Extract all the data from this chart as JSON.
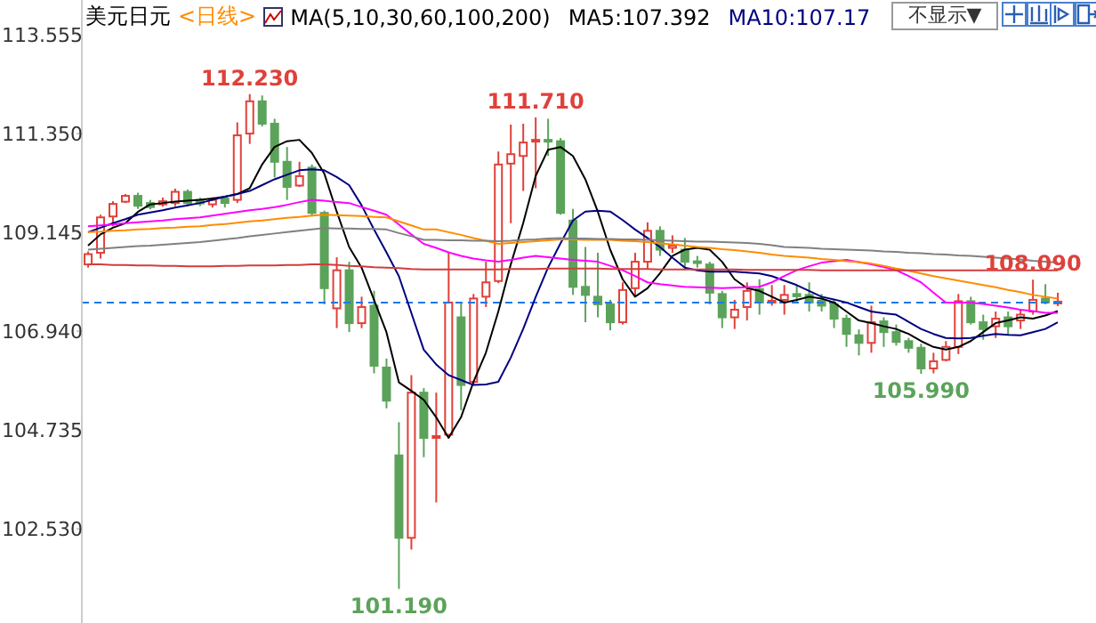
{
  "chart_data": {
    "type": "candlestick",
    "title": "美元日元",
    "subtitle": "<日线>",
    "annotations": [
      "MA(5,10,30,60,100,200)",
      "MA5:107.392",
      "MA10:107.17",
      "不显示▼",
      {
        "text": "112.230",
        "y": 112.23
      },
      {
        "text": "111.710",
        "y": 111.71
      },
      {
        "text": "108.090",
        "y": 108.09
      },
      {
        "text": "101.190",
        "y": 101.19
      },
      {
        "text": "105.990",
        "y": 105.99
      }
    ],
    "categories": [
      null,
      null,
      null,
      null,
      null,
      null,
      null,
      null,
      null,
      null,
      null,
      null,
      null,
      null,
      null,
      null,
      null,
      null,
      null,
      null,
      null,
      null,
      null,
      null,
      null,
      null,
      null,
      null,
      null,
      null,
      null,
      null,
      null,
      null,
      null,
      null,
      null,
      null,
      null,
      null,
      null,
      null,
      null,
      null,
      null,
      null,
      null,
      null,
      null,
      null,
      null,
      null,
      null,
      null,
      null,
      null,
      null,
      null,
      null,
      null,
      null,
      null,
      null,
      null,
      null,
      null,
      null,
      null,
      null,
      null,
      null,
      null,
      null,
      null,
      null,
      null,
      null,
      null,
      null
    ],
    "ohlc": [
      [
        108.43,
        108.72,
        108.36,
        108.66
      ],
      [
        108.69,
        109.54,
        108.56,
        109.48
      ],
      [
        109.5,
        109.84,
        109.28,
        109.78
      ],
      [
        109.83,
        110.0,
        109.8,
        109.96
      ],
      [
        109.96,
        110.03,
        109.67,
        109.74
      ],
      [
        109.8,
        109.87,
        109.66,
        109.71
      ],
      [
        109.77,
        109.92,
        109.72,
        109.84
      ],
      [
        109.8,
        110.12,
        109.73,
        110.05
      ],
      [
        110.05,
        110.1,
        109.73,
        109.8
      ],
      [
        109.87,
        109.92,
        109.73,
        109.79
      ],
      [
        109.77,
        109.93,
        109.7,
        109.87
      ],
      [
        109.9,
        109.95,
        109.7,
        109.8
      ],
      [
        109.87,
        111.6,
        109.8,
        111.31
      ],
      [
        111.35,
        112.23,
        111.12,
        112.07
      ],
      [
        112.07,
        112.2,
        111.51,
        111.57
      ],
      [
        111.57,
        111.68,
        110.37,
        110.72
      ],
      [
        110.72,
        111.05,
        109.87,
        110.16
      ],
      [
        110.19,
        110.72,
        110.16,
        110.4
      ],
      [
        110.59,
        110.66,
        109.5,
        109.58
      ],
      [
        109.58,
        109.63,
        107.54,
        107.9
      ],
      [
        107.45,
        108.59,
        107.01,
        108.3
      ],
      [
        108.3,
        108.49,
        106.92,
        107.12
      ],
      [
        107.12,
        107.71,
        107.01,
        107.48
      ],
      [
        107.51,
        107.84,
        106.0,
        106.17
      ],
      [
        106.13,
        106.33,
        105.22,
        105.39
      ],
      [
        104.17,
        104.91,
        101.19,
        102.33
      ],
      [
        102.33,
        105.96,
        102.07,
        105.57
      ],
      [
        105.57,
        105.67,
        104.13,
        104.56
      ],
      [
        104.56,
        105.57,
        103.12,
        104.6
      ],
      [
        104.63,
        108.69,
        104.56,
        107.58
      ],
      [
        107.25,
        107.58,
        105.18,
        105.74
      ],
      [
        105.81,
        107.77,
        105.74,
        107.67
      ],
      [
        107.71,
        108.49,
        107.48,
        108.03
      ],
      [
        108.06,
        110.95,
        108.01,
        110.66
      ],
      [
        110.68,
        111.55,
        109.35,
        110.89
      ],
      [
        110.85,
        111.57,
        110.07,
        111.15
      ],
      [
        111.17,
        111.71,
        110.13,
        111.21
      ],
      [
        111.21,
        111.68,
        110.85,
        111.17
      ],
      [
        111.18,
        111.25,
        109.54,
        109.58
      ],
      [
        109.41,
        109.67,
        107.75,
        107.93
      ],
      [
        107.93,
        108.82,
        107.14,
        107.75
      ],
      [
        107.71,
        108.69,
        107.25,
        107.54
      ],
      [
        107.54,
        107.64,
        106.96,
        107.14
      ],
      [
        107.14,
        108.03,
        107.09,
        107.86
      ],
      [
        107.9,
        108.69,
        107.71,
        108.49
      ],
      [
        108.49,
        109.37,
        108.32,
        109.18
      ],
      [
        109.18,
        109.28,
        108.62,
        108.76
      ],
      [
        108.8,
        109.08,
        108.69,
        108.85
      ],
      [
        108.76,
        109.02,
        108.3,
        108.49
      ],
      [
        108.5,
        108.62,
        108.36,
        108.47
      ],
      [
        108.43,
        108.49,
        107.54,
        107.8
      ],
      [
        107.77,
        107.84,
        107.01,
        107.25
      ],
      [
        107.25,
        107.64,
        106.99,
        107.42
      ],
      [
        107.48,
        108.03,
        107.18,
        107.84
      ],
      [
        107.88,
        108.1,
        107.31,
        107.58
      ],
      [
        107.58,
        107.97,
        107.51,
        107.62
      ],
      [
        107.64,
        107.97,
        107.31,
        107.75
      ],
      [
        107.77,
        107.97,
        107.58,
        107.72
      ],
      [
        107.75,
        108.03,
        107.38,
        107.58
      ],
      [
        107.62,
        107.77,
        107.38,
        107.51
      ],
      [
        107.54,
        107.64,
        107.01,
        107.22
      ],
      [
        107.22,
        107.31,
        106.59,
        106.88
      ],
      [
        106.85,
        106.98,
        106.4,
        106.68
      ],
      [
        106.68,
        107.51,
        106.46,
        107.14
      ],
      [
        107.16,
        107.25,
        106.59,
        106.92
      ],
      [
        106.92,
        107.09,
        106.62,
        106.7
      ],
      [
        106.72,
        106.79,
        106.46,
        106.57
      ],
      [
        106.57,
        106.66,
        105.99,
        106.11
      ],
      [
        106.11,
        106.46,
        106.0,
        106.27
      ],
      [
        106.3,
        106.72,
        106.27,
        106.59
      ],
      [
        106.59,
        107.77,
        106.43,
        107.61
      ],
      [
        107.61,
        107.71,
        107.09,
        107.14
      ],
      [
        107.14,
        107.31,
        106.75,
        106.99
      ],
      [
        107.05,
        107.38,
        106.79,
        107.22
      ],
      [
        107.25,
        107.38,
        106.85,
        107.05
      ],
      [
        107.18,
        107.44,
        106.99,
        107.31
      ],
      [
        107.38,
        108.09,
        107.31,
        107.64
      ],
      [
        107.67,
        107.99,
        107.54,
        107.58
      ],
      [
        107.58,
        107.8,
        107.5,
        107.6
      ]
    ],
    "series": [
      {
        "type": "line",
        "color": "#000000",
        "values": [
          108.85,
          109.1,
          109.25,
          109.35,
          109.6,
          109.77,
          109.8,
          109.83,
          109.85,
          109.87,
          109.9,
          109.94,
          110.0,
          110.13,
          110.66,
          111.05,
          111.18,
          111.21,
          110.92,
          110.46,
          109.61,
          108.82,
          108.36,
          107.64,
          106.92,
          105.8,
          105.61,
          105.41,
          105.02,
          104.56,
          105.02,
          105.81,
          106.46,
          107.38,
          108.43,
          109.35,
          110.4,
          110.99,
          111.05,
          110.85,
          110.33,
          109.61,
          108.76,
          108.1,
          107.71,
          107.9,
          108.23,
          108.62,
          108.76,
          108.8,
          108.76,
          108.49,
          108.1,
          107.9,
          107.84,
          107.71,
          107.58,
          107.64,
          107.71,
          107.67,
          107.58,
          107.38,
          107.18,
          107.12,
          107.05,
          106.99,
          106.88,
          106.72,
          106.59,
          106.53,
          106.59,
          106.72,
          106.92,
          107.12,
          107.18,
          107.25,
          107.22,
          107.29,
          107.39
        ]
      },
      {
        "type": "line",
        "color": "#000080",
        "values": [
          109.15,
          109.25,
          109.35,
          109.44,
          109.54,
          109.59,
          109.64,
          109.7,
          109.75,
          109.8,
          109.87,
          109.94,
          110.0,
          110.07,
          110.2,
          110.33,
          110.43,
          110.53,
          110.55,
          110.53,
          110.38,
          110.2,
          109.75,
          109.21,
          108.7,
          108.17,
          107.35,
          106.53,
          106.2,
          105.96,
          105.85,
          105.74,
          105.75,
          105.81,
          106.35,
          106.99,
          107.7,
          108.36,
          108.9,
          109.41,
          109.61,
          109.63,
          109.61,
          109.42,
          109.21,
          109.02,
          108.82,
          108.58,
          108.36,
          108.3,
          108.27,
          108.27,
          108.27,
          108.25,
          108.23,
          108.17,
          108.07,
          107.97,
          107.84,
          107.71,
          107.65,
          107.58,
          107.48,
          107.38,
          107.34,
          107.31,
          107.15,
          106.99,
          106.88,
          106.79,
          106.78,
          106.79,
          106.84,
          106.88,
          106.86,
          106.85,
          106.92,
          106.99,
          107.14
        ]
      },
      {
        "type": "line",
        "color": "#ff00ff",
        "values": [
          109.28,
          109.3,
          109.32,
          109.35,
          109.37,
          109.39,
          109.41,
          109.44,
          109.46,
          109.48,
          109.52,
          109.56,
          109.6,
          109.64,
          109.67,
          109.71,
          109.76,
          109.82,
          109.87,
          109.85,
          109.82,
          109.8,
          109.71,
          109.63,
          109.54,
          109.32,
          109.1,
          108.89,
          108.8,
          108.7,
          108.62,
          108.56,
          108.52,
          108.49,
          108.53,
          108.58,
          108.62,
          108.59,
          108.56,
          108.53,
          108.51,
          108.49,
          108.4,
          108.3,
          108.17,
          108.03,
          107.99,
          107.96,
          107.93,
          107.92,
          107.91,
          107.9,
          107.91,
          107.92,
          107.93,
          108.03,
          108.17,
          108.3,
          108.39,
          108.47,
          108.5,
          108.53,
          108.48,
          108.43,
          108.37,
          108.3,
          108.17,
          108.03,
          107.8,
          107.58,
          107.58,
          107.58,
          107.55,
          107.51,
          107.47,
          107.42,
          107.39,
          107.35,
          107.35
        ]
      },
      {
        "type": "line",
        "color": "#ff8c00",
        "values": [
          109.15,
          109.16,
          109.18,
          109.19,
          109.21,
          109.22,
          109.24,
          109.25,
          109.27,
          109.28,
          109.31,
          109.33,
          109.36,
          109.39,
          109.41,
          109.44,
          109.47,
          109.49,
          109.52,
          109.54,
          109.53,
          109.52,
          109.51,
          109.49,
          109.48,
          109.39,
          109.3,
          109.21,
          109.21,
          109.15,
          109.09,
          109.02,
          108.96,
          108.89,
          108.91,
          108.93,
          108.95,
          108.97,
          108.99,
          108.99,
          108.98,
          108.98,
          108.98,
          108.96,
          108.95,
          108.93,
          108.9,
          108.88,
          108.85,
          108.82,
          108.8,
          108.77,
          108.75,
          108.72,
          108.69,
          108.65,
          108.62,
          108.6,
          108.58,
          108.55,
          108.53,
          108.5,
          108.48,
          108.45,
          108.4,
          108.34,
          108.29,
          108.23,
          108.17,
          108.12,
          108.07,
          108.02,
          107.97,
          107.92,
          107.86,
          107.81,
          107.75,
          107.71,
          107.67
        ]
      },
      {
        "type": "line",
        "color": "#808080",
        "values": [
          108.76,
          108.78,
          108.8,
          108.82,
          108.84,
          108.85,
          108.87,
          108.89,
          108.91,
          108.93,
          108.96,
          108.99,
          109.02,
          109.06,
          109.09,
          109.12,
          109.15,
          109.18,
          109.21,
          109.24,
          109.23,
          109.23,
          109.22,
          109.22,
          109.21,
          109.13,
          109.06,
          108.98,
          108.98,
          108.97,
          108.97,
          108.96,
          108.96,
          108.95,
          108.96,
          108.98,
          108.99,
          109.01,
          109.02,
          109.01,
          109.01,
          109.0,
          109.0,
          108.99,
          108.99,
          108.98,
          108.97,
          108.96,
          108.95,
          108.94,
          108.94,
          108.93,
          108.92,
          108.91,
          108.89,
          108.86,
          108.82,
          108.81,
          108.8,
          108.78,
          108.77,
          108.76,
          108.75,
          108.74,
          108.72,
          108.71,
          108.69,
          108.68,
          108.66,
          108.65,
          108.63,
          108.62,
          108.6,
          108.58,
          108.56,
          108.54,
          108.51,
          108.49,
          108.47
        ]
      },
      {
        "type": "line",
        "color": "#d23c3c",
        "values": [
          108.43,
          108.43,
          108.42,
          108.42,
          108.41,
          108.41,
          108.4,
          108.4,
          108.39,
          108.39,
          108.39,
          108.4,
          108.4,
          108.41,
          108.41,
          108.41,
          108.42,
          108.42,
          108.43,
          108.43,
          108.42,
          108.4,
          108.39,
          108.37,
          108.36,
          108.35,
          108.33,
          108.32,
          108.32,
          108.32,
          108.32,
          108.32,
          108.32,
          108.32,
          108.33,
          108.33,
          108.33,
          108.34,
          108.34,
          108.34,
          108.34,
          108.34,
          108.33,
          108.33,
          108.33,
          108.33,
          108.32,
          108.32,
          108.32,
          108.32,
          108.32,
          108.32,
          108.32,
          108.31,
          108.31,
          108.31,
          108.31,
          108.31,
          108.31,
          108.3,
          108.3,
          108.3,
          108.3,
          108.3,
          108.3,
          108.3,
          108.3,
          108.3,
          108.3,
          108.3,
          108.3,
          108.3,
          108.3,
          108.3,
          108.3,
          108.3,
          108.3,
          108.3,
          108.3
        ]
      }
    ],
    "colors": [
      "#e0403a",
      "#e0403a",
      "#e0403a",
      "#e0403a",
      "#5ba35a",
      "#5ba35a",
      "#e0403a",
      "#e0403a",
      "#5ba35a",
      "#5ba35a",
      "#e0403a",
      "#5ba35a",
      "#e0403a",
      "#e0403a",
      "#5ba35a",
      "#5ba35a",
      "#5ba35a",
      "#e0403a",
      "#5ba35a",
      "#5ba35a",
      "#e0403a",
      "#5ba35a",
      "#e0403a",
      "#5ba35a",
      "#5ba35a",
      "#5ba35a",
      "#e0403a",
      "#5ba35a",
      "#e0403a",
      "#e0403a",
      "#5ba35a",
      "#e0403a",
      "#e0403a",
      "#e0403a",
      "#e0403a",
      "#e0403a",
      "#e0403a",
      "#5ba35a",
      "#5ba35a",
      "#5ba35a",
      "#5ba35a",
      "#5ba35a",
      "#5ba35a",
      "#e0403a",
      "#e0403a",
      "#e0403a",
      "#5ba35a",
      "#e0403a",
      "#5ba35a",
      "#5ba35a",
      "#5ba35a",
      "#5ba35a",
      "#e0403a",
      "#e0403a",
      "#5ba35a",
      "#e0403a",
      "#e0403a",
      "#5ba35a",
      "#5ba35a",
      "#5ba35a",
      "#5ba35a",
      "#5ba35a",
      "#5ba35a",
      "#e0403a",
      "#5ba35a",
      "#5ba35a",
      "#5ba35a",
      "#5ba35a",
      "#e0403a",
      "#e0403a",
      "#e0403a",
      "#5ba35a",
      "#5ba35a",
      "#e0403a",
      "#5ba35a",
      "#e0403a",
      "#e0403a",
      "#5ba35a",
      "#e0403a"
    ],
    "ylim": [
      100.43,
      114.33
    ],
    "yticks": [
      {
        "value": 102.53,
        "label": "102.530"
      },
      {
        "value": 104.735,
        "label": "104.735"
      },
      {
        "value": 106.94,
        "label": "106.940"
      },
      {
        "value": 109.145,
        "label": "109.145"
      },
      {
        "value": 111.35,
        "label": "111.350"
      },
      {
        "value": 113.555,
        "label": "113.555"
      }
    ],
    "ref_lines": [
      {
        "axis": "y",
        "value": 107.58,
        "color": "#1e78e6",
        "line_style": "dashed"
      }
    ],
    "tick_labels": "y",
    "marker": "none",
    "line_style": "solid"
  }
}
